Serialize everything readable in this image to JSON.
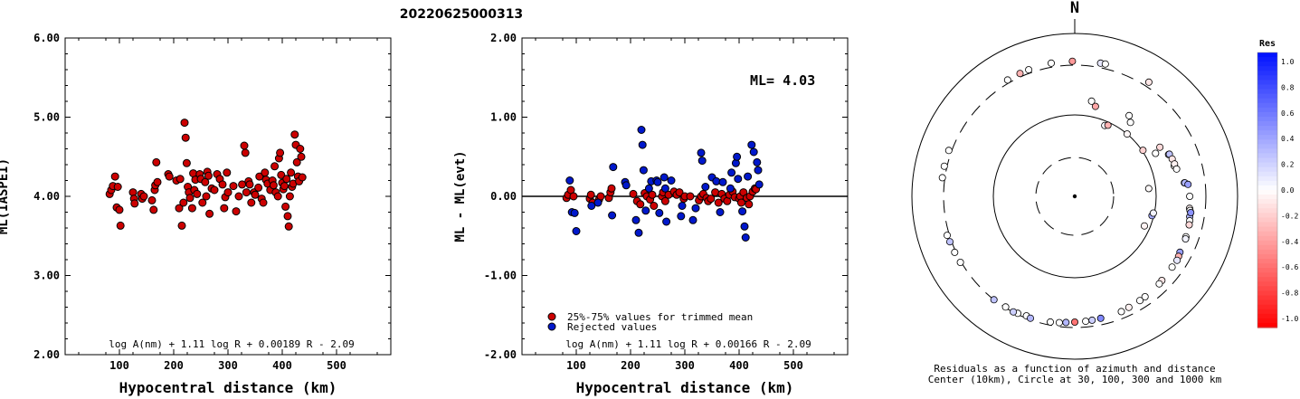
{
  "title": "20220625000313",
  "chart_data": [
    {
      "type": "scatter",
      "xlabel": "Hypocentral distance (km)",
      "ylabel": "ML(IASPEI)",
      "xlim": [
        0,
        600
      ],
      "ylim": [
        2.0,
        6.0
      ],
      "xticks": [
        "100",
        "200",
        "300",
        "400",
        "500"
      ],
      "yticks": [
        "2.00",
        "3.00",
        "4.00",
        "5.00",
        "6.00"
      ],
      "formula": "log A(nm) + 1.11 log R + 0.00189 R - 2.09",
      "series": [
        {
          "color": "#cc0000",
          "points": [
            [
              82,
              4.03
            ],
            [
              85,
              4.08
            ],
            [
              88,
              4.13
            ],
            [
              92,
              4.25
            ],
            [
              95,
              3.86
            ],
            [
              97,
              4.12
            ],
            [
              100,
              3.83
            ],
            [
              102,
              3.63
            ],
            [
              125,
              4.05
            ],
            [
              127,
              3.97
            ],
            [
              128,
              3.91
            ],
            [
              140,
              4.03
            ],
            [
              142,
              3.97
            ],
            [
              145,
              4.0
            ],
            [
              160,
              3.95
            ],
            [
              163,
              3.83
            ],
            [
              165,
              4.08
            ],
            [
              166,
              4.14
            ],
            [
              168,
              4.43
            ],
            [
              170,
              4.18
            ],
            [
              190,
              4.28
            ],
            [
              192,
              4.25
            ],
            [
              205,
              4.2
            ],
            [
              210,
              3.85
            ],
            [
              212,
              4.22
            ],
            [
              215,
              3.63
            ],
            [
              218,
              3.92
            ],
            [
              220,
              4.93
            ],
            [
              222,
              4.74
            ],
            [
              224,
              4.42
            ],
            [
              226,
              4.12
            ],
            [
              228,
              4.05
            ],
            [
              230,
              3.98
            ],
            [
              234,
              3.85
            ],
            [
              236,
              4.29
            ],
            [
              238,
              4.08
            ],
            [
              240,
              4.21
            ],
            [
              243,
              4.03
            ],
            [
              248,
              4.28
            ],
            [
              250,
              4.22
            ],
            [
              253,
              3.92
            ],
            [
              258,
              4.18
            ],
            [
              260,
              4.0
            ],
            [
              262,
              4.31
            ],
            [
              264,
              4.26
            ],
            [
              266,
              3.78
            ],
            [
              270,
              4.1
            ],
            [
              275,
              4.08
            ],
            [
              280,
              4.28
            ],
            [
              285,
              4.22
            ],
            [
              290,
              4.15
            ],
            [
              293,
              3.85
            ],
            [
              295,
              3.99
            ],
            [
              298,
              4.3
            ],
            [
              300,
              4.05
            ],
            [
              310,
              4.13
            ],
            [
              315,
              3.81
            ],
            [
              320,
              4.0
            ],
            [
              326,
              4.15
            ],
            [
              330,
              4.64
            ],
            [
              332,
              4.55
            ],
            [
              334,
              4.05
            ],
            [
              338,
              4.19
            ],
            [
              340,
              4.15
            ],
            [
              343,
              3.92
            ],
            [
              348,
              4.05
            ],
            [
              350,
              4.02
            ],
            [
              356,
              4.11
            ],
            [
              358,
              4.25
            ],
            [
              362,
              3.97
            ],
            [
              365,
              3.92
            ],
            [
              368,
              4.3
            ],
            [
              370,
              4.21
            ],
            [
              373,
              4.16
            ],
            [
              378,
              4.08
            ],
            [
              382,
              4.2
            ],
            [
              384,
              4.14
            ],
            [
              386,
              4.38
            ],
            [
              388,
              4.05
            ],
            [
              392,
              4.0
            ],
            [
              394,
              4.48
            ],
            [
              396,
              4.55
            ],
            [
              398,
              4.27
            ],
            [
              400,
              4.17
            ],
            [
              402,
              4.09
            ],
            [
              404,
              4.13
            ],
            [
              406,
              3.87
            ],
            [
              408,
              4.22
            ],
            [
              410,
              3.75
            ],
            [
              412,
              3.62
            ],
            [
              414,
              4.0
            ],
            [
              416,
              4.3
            ],
            [
              418,
              4.12
            ],
            [
              420,
              4.16
            ],
            [
              423,
              4.78
            ],
            [
              425,
              4.65
            ],
            [
              427,
              4.43
            ],
            [
              429,
              4.25
            ],
            [
              431,
              4.19
            ],
            [
              433,
              4.6
            ],
            [
              435,
              4.5
            ],
            [
              437,
              4.24
            ]
          ]
        }
      ]
    },
    {
      "type": "scatter",
      "xlabel": "Hypocentral distance (km)",
      "ylabel": "ML - ML(evt)",
      "xlim": [
        0,
        600
      ],
      "ylim": [
        -2.0,
        2.0
      ],
      "xticks": [
        "100",
        "200",
        "300",
        "400",
        "500"
      ],
      "yticks": [
        "-2.00",
        "-1.00",
        "0.00",
        "1.00",
        "2.00"
      ],
      "ml_label": "ML= 4.03",
      "formula": "log A(nm) + 1.11 log R + 0.00166 R - 2.09",
      "legend": [
        {
          "label": "25%-75% values for trimmed mean",
          "color": "#cc0000"
        },
        {
          "label": "Rejected values",
          "color": "#0018cc"
        }
      ],
      "series": [
        {
          "color": "#cc0000",
          "points": [
            [
              82,
              -0.02
            ],
            [
              85,
              0.02
            ],
            [
              90,
              0.08
            ],
            [
              95,
              0.0
            ],
            [
              125,
              -0.03
            ],
            [
              127,
              0.02
            ],
            [
              130,
              -0.08
            ],
            [
              142,
              -0.04
            ],
            [
              145,
              0.0
            ],
            [
              160,
              -0.02
            ],
            [
              163,
              0.05
            ],
            [
              165,
              0.1
            ],
            [
              205,
              0.03
            ],
            [
              212,
              -0.06
            ],
            [
              218,
              -0.1
            ],
            [
              226,
              0.04
            ],
            [
              230,
              0.0
            ],
            [
              236,
              -0.04
            ],
            [
              240,
              0.02
            ],
            [
              243,
              -0.12
            ],
            [
              258,
              0.0
            ],
            [
              260,
              0.05
            ],
            [
              264,
              -0.06
            ],
            [
              270,
              0.02
            ],
            [
              280,
              0.06
            ],
            [
              285,
              0.02
            ],
            [
              290,
              0.05
            ],
            [
              298,
              -0.03
            ],
            [
              300,
              0.0
            ],
            [
              310,
              0.0
            ],
            [
              326,
              -0.05
            ],
            [
              330,
              0.0
            ],
            [
              334,
              0.03
            ],
            [
              340,
              -0.02
            ],
            [
              343,
              -0.06
            ],
            [
              348,
              -0.03
            ],
            [
              356,
              0.05
            ],
            [
              362,
              -0.08
            ],
            [
              368,
              0.03
            ],
            [
              373,
              -0.03
            ],
            [
              378,
              -0.06
            ],
            [
              382,
              0.02
            ],
            [
              388,
              0.06
            ],
            [
              392,
              -0.01
            ],
            [
              400,
              -0.03
            ],
            [
              402,
              0.0
            ],
            [
              404,
              -0.08
            ],
            [
              408,
              0.05
            ],
            [
              414,
              -0.02
            ],
            [
              418,
              -0.1
            ],
            [
              420,
              0.0
            ],
            [
              425,
              0.06
            ],
            [
              429,
              0.1
            ],
            [
              431,
              0.09
            ]
          ]
        },
        {
          "color": "#0018cc",
          "points": [
            [
              88,
              0.2
            ],
            [
              92,
              -0.2
            ],
            [
              97,
              -0.21
            ],
            [
              100,
              -0.44
            ],
            [
              128,
              -0.12
            ],
            [
              140,
              -0.08
            ],
            [
              166,
              -0.24
            ],
            [
              168,
              0.37
            ],
            [
              190,
              0.18
            ],
            [
              192,
              0.14
            ],
            [
              210,
              -0.3
            ],
            [
              215,
              -0.46
            ],
            [
              220,
              0.84
            ],
            [
              222,
              0.65
            ],
            [
              224,
              0.33
            ],
            [
              228,
              -0.18
            ],
            [
              234,
              0.1
            ],
            [
              238,
              0.19
            ],
            [
              248,
              0.2
            ],
            [
              250,
              0.18
            ],
            [
              253,
              -0.21
            ],
            [
              262,
              0.24
            ],
            [
              264,
              0.1
            ],
            [
              266,
              -0.32
            ],
            [
              275,
              0.2
            ],
            [
              293,
              -0.25
            ],
            [
              295,
              -0.12
            ],
            [
              315,
              -0.3
            ],
            [
              320,
              -0.15
            ],
            [
              330,
              0.55
            ],
            [
              332,
              0.45
            ],
            [
              338,
              0.12
            ],
            [
              350,
              0.24
            ],
            [
              358,
              0.19
            ],
            [
              365,
              -0.2
            ],
            [
              370,
              0.18
            ],
            [
              384,
              0.1
            ],
            [
              386,
              0.3
            ],
            [
              394,
              0.42
            ],
            [
              396,
              0.5
            ],
            [
              398,
              0.22
            ],
            [
              406,
              -0.19
            ],
            [
              410,
              -0.38
            ],
            [
              412,
              -0.52
            ],
            [
              416,
              0.25
            ],
            [
              423,
              0.65
            ],
            [
              427,
              0.56
            ],
            [
              433,
              0.43
            ],
            [
              435,
              0.33
            ],
            [
              437,
              0.15
            ]
          ]
        }
      ]
    },
    {
      "type": "scatter",
      "polar": true,
      "north_label": "N",
      "caption_line1": "Residuals as a function of azimuth and distance",
      "caption_line2": "Center (10km), Circle at 30, 100, 300 and 1000 km",
      "colorbar_title": "Res",
      "colorbar_ticks": [
        "1.0",
        "0.8",
        "0.6",
        "0.4",
        "0.2",
        "0.0",
        "-0.2",
        "-0.4",
        "-0.6",
        "-0.8",
        "-1.0"
      ],
      "points": [
        [
          84,
          -0.02
        ],
        [
          113,
          -0.05
        ],
        [
          23,
          0.02
        ],
        [
          25,
          -0.3
        ],
        [
          104,
          0.35
        ],
        [
          102,
          0.05
        ],
        [
          40,
          -0.03
        ],
        [
          56,
          -0.18
        ],
        [
          62,
          0.0
        ],
        [
          13,
          -0.35
        ],
        [
          37,
          0.0
        ],
        [
          10,
          0.0
        ],
        [
          34,
          0.0
        ],
        [
          60,
          -0.15
        ],
        [
          66,
          0.0
        ],
        [
          66,
          0.25
        ],
        [
          73,
          0.0
        ],
        [
          69,
          -0.1
        ],
        [
          72,
          -0.05
        ],
        [
          75,
          0.0
        ],
        [
          83,
          0.0
        ],
        [
          83,
          0.3
        ],
        [
          84,
          0.4
        ],
        [
          90,
          0.0
        ],
        [
          96,
          -0.05
        ],
        [
          97,
          0.0
        ],
        [
          100,
          0.3
        ],
        [
          98,
          0.45
        ],
        [
          102,
          0.0
        ],
        [
          104,
          -0.15
        ],
        [
          110,
          0.0
        ],
        [
          111,
          0.05
        ],
        [
          118,
          0.4
        ],
        [
          120,
          -0.3
        ],
        [
          126,
          0.0
        ],
        [
          122,
          0.1
        ],
        [
          134,
          -0.1
        ],
        [
          136,
          0.0
        ],
        [
          145,
          0.0
        ],
        [
          148,
          0.0
        ],
        [
          154,
          -0.05
        ],
        [
          158,
          0.0
        ],
        [
          168,
          0.5
        ],
        [
          172,
          0.2
        ],
        [
          175,
          0.0
        ],
        [
          180,
          -0.55
        ],
        [
          184,
          0.3
        ],
        [
          187,
          0.0
        ],
        [
          191,
          0.0
        ],
        [
          202,
          0.0
        ],
        [
          200,
          0.3
        ],
        [
          206,
          0.0
        ],
        [
          212,
          0.0
        ],
        [
          208,
          0.2
        ],
        [
          218,
          0.25
        ],
        [
          240,
          0.0
        ],
        [
          245,
          0.0
        ],
        [
          250,
          0.25
        ],
        [
          253,
          0.0
        ],
        [
          278,
          0.0
        ],
        [
          283,
          0.0
        ],
        [
          290,
          0.0
        ],
        [
          330,
          0.0
        ],
        [
          336,
          -0.3
        ],
        [
          340,
          0.0
        ],
        [
          359,
          -0.4
        ],
        [
          350,
          0.0
        ],
        [
          11,
          0.1
        ],
        [
          13,
          0.0
        ],
        [
          33,
          -0.1
        ]
      ]
    }
  ]
}
